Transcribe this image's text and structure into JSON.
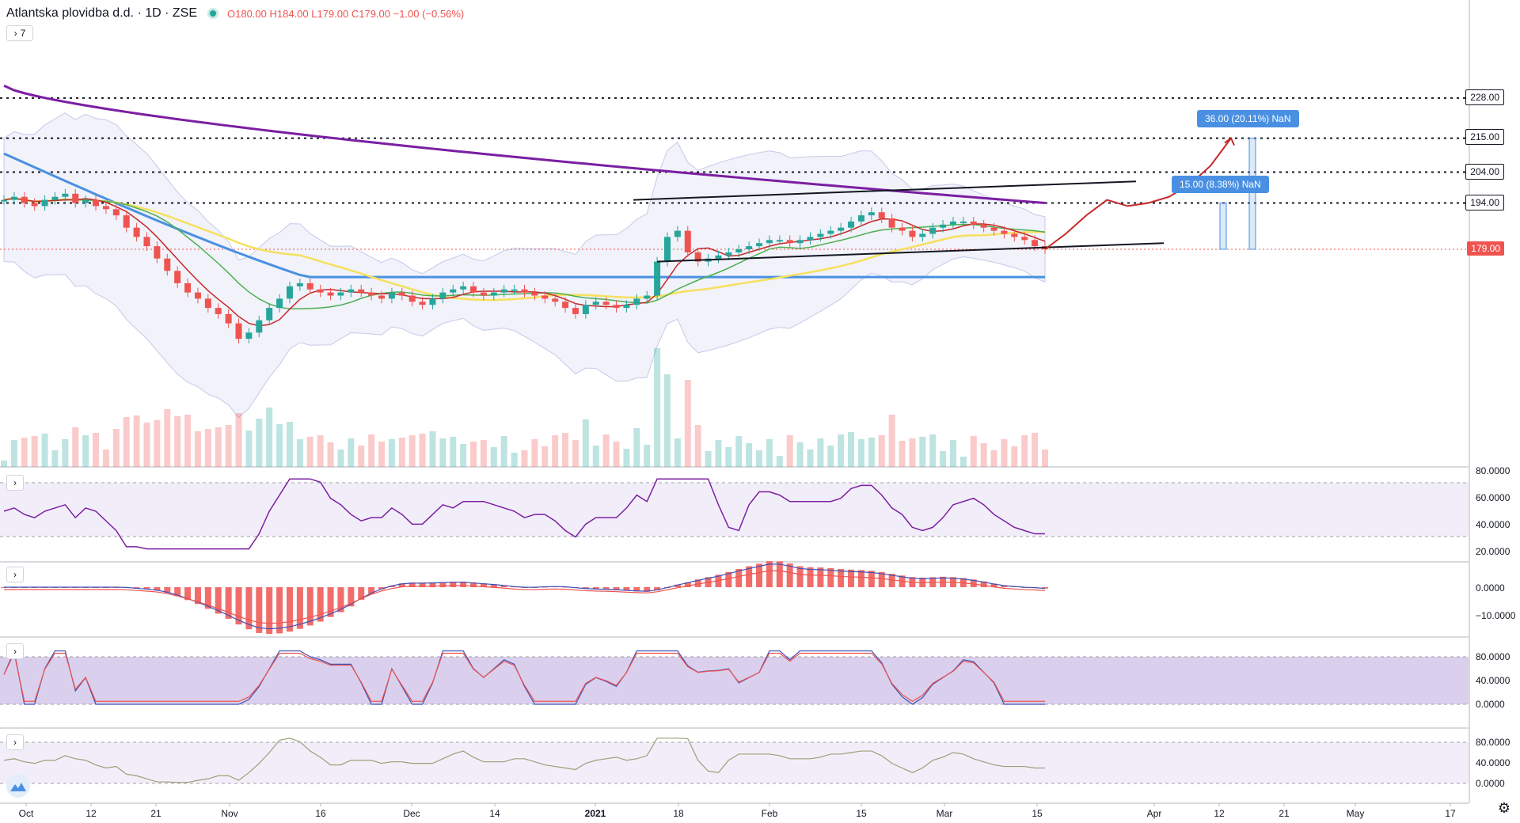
{
  "header": {
    "title": "Atlantska plovidba d.d. · 1D · ZSE",
    "ohlc": "O180.00 H184.00 L179.00 C179.00 −1.00 (−0.56%)",
    "collapse_label": "7",
    "collapse_icon": "chevron-right-icon"
  },
  "colors": {
    "up": "#26a69a",
    "down": "#ef5350",
    "ma200": "#7b1fa2",
    "ma100": "#4a90e2",
    "ma50": "#f6e05e",
    "ma20": "#4caf50",
    "ma10": "#c62828",
    "bb_fill": "#e8eaf6",
    "pane_fill": "#ede7f6",
    "stoch_fill": "#d1c4e9",
    "callout": "#4a90e2"
  },
  "price_levels": [
    "228.00",
    "215.00",
    "204.00",
    "194.00",
    "179.00"
  ],
  "callouts": [
    "36.00 (20.11%) NaN",
    "15.00 (8.38%) NaN"
  ],
  "rsi_axis": [
    "80.0000",
    "60.0000",
    "40.0000",
    "20.0000"
  ],
  "macd_axis": [
    "0.0000",
    "−10.0000"
  ],
  "stoch_axis": [
    "80.0000",
    "40.0000",
    "0.0000"
  ],
  "cci_axis": [
    "80.0000",
    "40.0000",
    "0.0000"
  ],
  "time_axis": [
    "Oct",
    "12",
    "21",
    "Nov",
    "16",
    "Dec",
    "14",
    "2021",
    "18",
    "Feb",
    "15",
    "Mar",
    "15",
    "Apr",
    "12",
    "21",
    "May",
    "17"
  ],
  "chart_data": {
    "type": "candlestick",
    "symbol": "Atlantska plovidba d.d.",
    "interval": "1D",
    "exchange": "ZSE",
    "last_close": 179.0,
    "ylim": [
      150,
      250
    ],
    "horizontal_levels": [
      228,
      215,
      204,
      194,
      179
    ],
    "close_series": [
      195,
      196,
      194,
      193,
      195,
      196,
      197,
      194,
      195,
      193,
      192,
      190,
      186,
      183,
      180,
      176,
      172,
      168,
      165,
      163,
      160,
      158,
      155,
      150,
      152,
      156,
      160,
      163,
      167,
      168,
      166,
      165,
      164,
      165,
      166,
      165,
      164,
      163,
      165,
      164,
      162,
      161,
      163,
      165,
      166,
      167,
      165,
      164,
      165,
      166,
      166,
      165,
      164,
      163,
      162,
      160,
      158,
      161,
      162,
      161,
      160,
      161,
      163,
      164,
      175,
      183,
      185,
      178,
      175,
      176,
      177,
      178,
      179,
      180,
      181,
      182,
      182,
      181,
      182,
      183,
      184,
      185,
      186,
      188,
      190,
      191,
      189,
      186,
      185,
      183,
      184,
      186,
      187,
      188,
      188,
      187,
      186,
      185,
      184,
      183,
      182,
      180,
      179
    ],
    "projection": [
      179,
      184,
      190,
      195,
      193,
      194,
      196,
      200,
      206,
      215
    ],
    "ranges": [
      {
        "label": "36.00 (20.11%) NaN",
        "from": 179,
        "to": 215
      },
      {
        "label": "15.00 (8.38%) NaN",
        "from": 179,
        "to": 194
      }
    ]
  }
}
